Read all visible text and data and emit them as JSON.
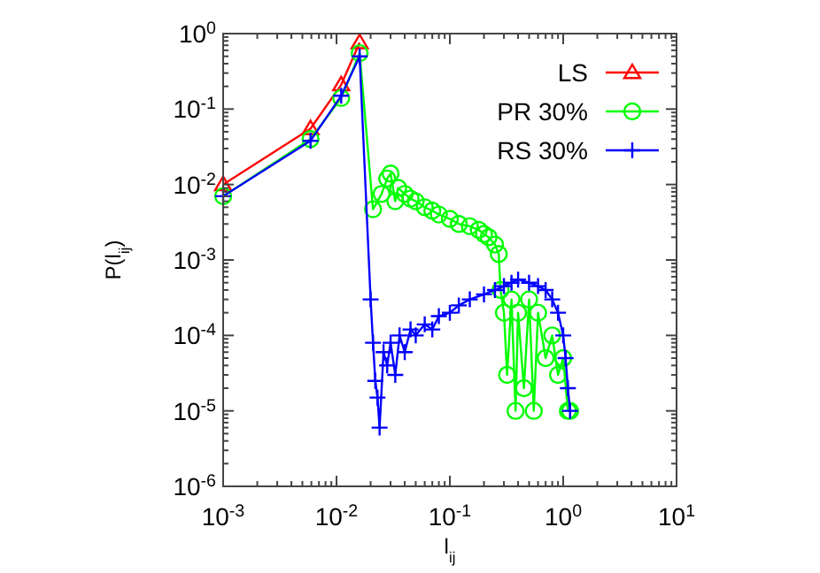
{
  "chart_data": {
    "type": "line",
    "xlabel": "l$_{ij}$",
    "ylabel": "P(l$_{ij}$)",
    "log": "xy",
    "xlim": [
      0.001,
      10
    ],
    "ylim": [
      1e-06,
      1
    ],
    "xticks": [
      {
        "value": 0.001,
        "label": "10$^{-3}$"
      },
      {
        "value": 0.01,
        "label": "10$^{-2}$"
      },
      {
        "value": 0.1,
        "label": "10$^{-1}$"
      },
      {
        "value": 1,
        "label": "10$^{0}$"
      },
      {
        "value": 10,
        "label": "10$^{1}$"
      }
    ],
    "yticks": [
      {
        "value": 1e-06,
        "label": "10$^{-6}$"
      },
      {
        "value": 1e-05,
        "label": "10$^{-5}$"
      },
      {
        "value": 0.0001,
        "label": "10$^{-4}$"
      },
      {
        "value": 0.001,
        "label": "10$^{-3}$"
      },
      {
        "value": 0.01,
        "label": "10$^{-2}$"
      },
      {
        "value": 0.1,
        "label": "10$^{-1}$"
      },
      {
        "value": 1,
        "label": "10$^{0}$"
      }
    ],
    "grid": false,
    "legend": "top right",
    "line_style": "solid",
    "series": [
      {
        "name": "LS",
        "color": "#ff0000",
        "marker": "triangle",
        "x": [
          0.001,
          0.0059,
          0.011,
          0.016
        ],
        "values": [
          0.01,
          0.055,
          0.21,
          0.76
        ]
      },
      {
        "name": "PR 30%",
        "color": "#00ff00",
        "marker": "circle",
        "x": [
          0.001,
          0.0059,
          0.011,
          0.016,
          0.021,
          0.025,
          0.028,
          0.03,
          0.033,
          0.035,
          0.038,
          0.04,
          0.045,
          0.05,
          0.06,
          0.07,
          0.08,
          0.1,
          0.12,
          0.15,
          0.18,
          0.2,
          0.22,
          0.25,
          0.27,
          0.28,
          0.3,
          0.32,
          0.35,
          0.38,
          0.4,
          0.45,
          0.5,
          0.55,
          0.6,
          0.7,
          0.8,
          0.9,
          1.0,
          1.1,
          1.15
        ],
        "values": [
          0.007,
          0.04,
          0.14,
          0.55,
          0.0047,
          0.0075,
          0.012,
          0.014,
          0.006,
          0.009,
          null,
          0.0075,
          0.0065,
          0.006,
          0.005,
          0.0045,
          0.004,
          0.0035,
          0.003,
          0.0028,
          0.0025,
          0.0022,
          0.002,
          0.0016,
          0.0012,
          0.0004,
          0.0002,
          3e-05,
          0.0003,
          1e-05,
          0.0002,
          2e-05,
          0.0003,
          1e-05,
          0.0002,
          5e-05,
          0.0001,
          3e-05,
          5e-05,
          1e-05,
          1e-05
        ]
      },
      {
        "name": "RS 30%",
        "color": "#0000ff",
        "marker": "cross",
        "x": [
          0.001,
          0.0059,
          0.011,
          0.016,
          0.02,
          0.021,
          0.022,
          0.023,
          0.024,
          0.026,
          0.028,
          0.03,
          0.033,
          0.036,
          0.04,
          0.045,
          0.05,
          0.06,
          0.07,
          0.08,
          0.1,
          0.12,
          0.15,
          0.2,
          0.25,
          0.3,
          0.35,
          0.4,
          0.45,
          0.5,
          0.6,
          0.7,
          0.8,
          0.9,
          1.0,
          1.05,
          1.1,
          1.15
        ],
        "values": [
          0.007,
          0.038,
          0.15,
          0.5,
          0.0003,
          8e-05,
          2.5e-05,
          1.5e-05,
          6e-06,
          6e-05,
          4e-05,
          8e-05,
          3e-05,
          0.0001,
          6e-05,
          0.00012,
          0.0001,
          0.00014,
          0.00012,
          0.00018,
          0.0002,
          0.00025,
          0.0003,
          0.00035,
          0.0004,
          0.00045,
          0.0005,
          0.00055,
          null,
          0.0005,
          0.00045,
          0.0004,
          0.0003,
          0.0002,
          0.0001,
          5e-05,
          2e-05,
          1e-05
        ]
      }
    ]
  }
}
